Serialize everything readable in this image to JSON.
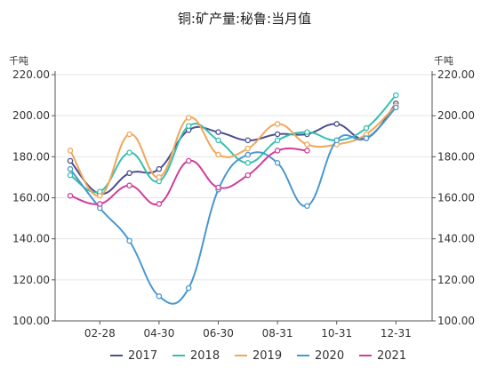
{
  "chart_data": {
    "type": "line",
    "title": "铜:矿产量:秘鲁:当月值",
    "ylabel_left": "千吨",
    "ylabel_right": "千吨",
    "ylim": [
      100,
      220
    ],
    "yticks": [
      "100.00",
      "120.00",
      "140.00",
      "160.00",
      "180.00",
      "200.00",
      "220.00"
    ],
    "xtick_labels": [
      "02-28",
      "04-30",
      "06-30",
      "08-31",
      "10-31",
      "12-31"
    ],
    "x": [
      "01-31",
      "02-28",
      "03-31",
      "04-30",
      "05-31",
      "06-30",
      "07-31",
      "08-31",
      "09-30",
      "10-31",
      "11-30",
      "12-31"
    ],
    "legend_position": "bottom",
    "grid": "horizontal",
    "series": [
      {
        "name": "2017",
        "color": "#4b4f8f",
        "values": [
          178,
          162,
          172,
          174,
          193,
          192,
          188,
          191,
          191,
          196,
          189,
          206
        ]
      },
      {
        "name": "2018",
        "color": "#37bfae",
        "values": [
          171,
          163,
          182,
          168,
          195,
          188,
          177,
          188,
          192,
          188,
          194,
          210
        ]
      },
      {
        "name": "2019",
        "color": "#f2a65a",
        "values": [
          183,
          161,
          191,
          170,
          199,
          181,
          184,
          196,
          186,
          186,
          191,
          205
        ]
      },
      {
        "name": "2020",
        "color": "#4a98cf",
        "values": [
          174,
          155,
          139,
          112,
          116,
          164,
          181,
          177,
          156,
          188,
          189,
          204
        ]
      },
      {
        "name": "2021",
        "color": "#cf3f9a",
        "values": [
          161,
          157,
          166,
          157,
          178,
          165,
          171,
          183,
          183,
          null,
          null,
          null
        ]
      }
    ]
  }
}
